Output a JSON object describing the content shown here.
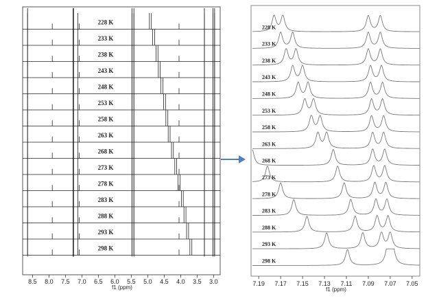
{
  "arrow_color": "#4f81bd",
  "chart_data": [
    {
      "type": "line",
      "title": "",
      "xlabel": "f1 (ppm)",
      "x_ticks": [
        "8.5",
        "8.0",
        "7.5",
        "7.0",
        "6.5",
        "6.0",
        "5.5",
        "5.0",
        "4.5",
        "4.0",
        "3.5",
        "3.0"
      ],
      "xlim": [
        8.8,
        2.8
      ],
      "series": [
        {
          "label": "228 K",
          "shift": 4.95
        },
        {
          "label": "233 K",
          "shift": 4.85
        },
        {
          "label": "238 K",
          "shift": 4.75
        },
        {
          "label": "243 K",
          "shift": 4.68
        },
        {
          "label": "248 K",
          "shift": 4.6
        },
        {
          "label": "253 K",
          "shift": 4.52
        },
        {
          "label": "258 K",
          "shift": 4.45
        },
        {
          "label": "263 K",
          "shift": 4.38
        },
        {
          "label": "268 K",
          "shift": 4.28
        },
        {
          "label": "273 K",
          "shift": 4.18
        },
        {
          "label": "278 K",
          "shift": 4.08
        },
        {
          "label": "283 K",
          "shift": 3.98
        },
        {
          "label": "288 K",
          "shift": 3.9
        },
        {
          "label": "293 K",
          "shift": 3.82
        },
        {
          "label": "298 K",
          "shift": 3.72
        }
      ],
      "fixed_peaks_ppm": [
        8.65,
        7.9,
        7.26,
        7.12,
        7.08,
        5.48,
        5.42,
        4.05,
        3.28,
        3.02,
        2.97
      ]
    },
    {
      "type": "line",
      "title": "",
      "xlabel": "f1 (ppm)",
      "x_ticks": [
        "7.19",
        "7.17",
        "7.15",
        "7.13",
        "7.11",
        "7.09",
        "7.07",
        "7.05"
      ],
      "xlim": [
        7.197,
        7.043
      ],
      "series": [
        {
          "label": "228 K",
          "peaks": [
            7.176,
            7.168,
            7.09,
            7.079
          ]
        },
        {
          "label": "233 K",
          "peaks": [
            7.17,
            7.159,
            7.09,
            7.079
          ]
        },
        {
          "label": "238 K",
          "peaks": [
            7.165,
            7.156,
            7.09,
            7.079
          ]
        },
        {
          "label": "243 K",
          "peaks": [
            7.159,
            7.15,
            7.088,
            7.078
          ]
        },
        {
          "label": "248 K",
          "peaks": [
            7.154,
            7.145,
            7.088,
            7.077
          ]
        },
        {
          "label": "253 K",
          "peaks": [
            7.148,
            7.14,
            7.087,
            7.077
          ]
        },
        {
          "label": "258 K",
          "peaks": [
            7.142,
            7.134,
            7.087,
            7.076
          ]
        },
        {
          "label": "263 K",
          "peaks": [
            7.136,
            7.128,
            7.086,
            7.076
          ]
        },
        {
          "label": "268 K",
          "peaks": [
            7.196,
            7.122,
            7.086,
            7.075
          ]
        },
        {
          "label": "273 K",
          "peaks": [
            7.182,
            7.118,
            7.085,
            7.075
          ]
        },
        {
          "label": "278 K",
          "peaks": [
            7.17,
            7.112,
            7.084,
            7.074
          ]
        },
        {
          "label": "283 K",
          "peaks": [
            7.158,
            7.106,
            7.083,
            7.073
          ]
        },
        {
          "label": "288 K",
          "peaks": [
            7.146,
            7.102,
            7.082,
            7.072
          ]
        },
        {
          "label": "293 K",
          "peaks": [
            7.128,
            7.095,
            7.078,
            7.07
          ]
        },
        {
          "label": "298 K",
          "peaks": [
            7.109,
            7.072,
            7.07,
            7.068
          ]
        }
      ]
    }
  ]
}
